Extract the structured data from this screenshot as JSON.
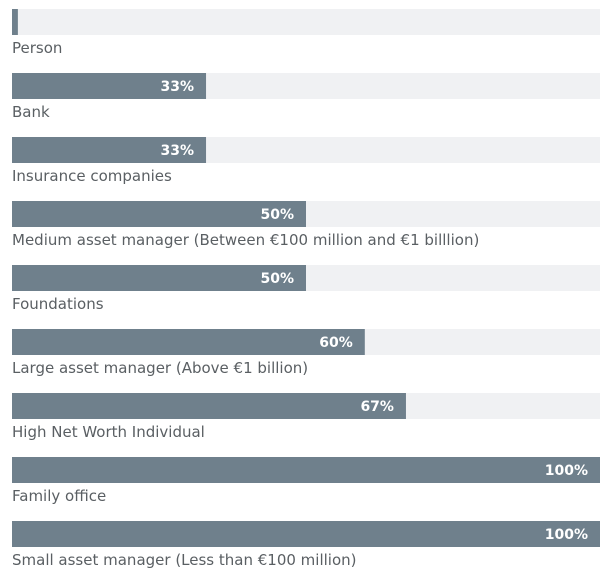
{
  "chart_data": {
    "type": "bar",
    "orientation": "horizontal",
    "categories": [
      "Person",
      "Bank",
      "Insurance companies",
      "Medium asset manager (Between €100 million and €1 billlion)",
      "Foundations",
      "Large asset manager (Above €1 billion)",
      "High Net Worth Individual",
      "Family office",
      "Small asset manager (Less than €100 million)"
    ],
    "values": [
      1,
      33,
      33,
      50,
      50,
      60,
      67,
      100,
      100
    ],
    "value_labels": [
      null,
      "33%",
      "33%",
      "50%",
      "50%",
      "60%",
      "67%",
      "100%",
      "100%"
    ],
    "color": "#6f808c",
    "track_color": "#f0f1f3",
    "xlim": [
      0,
      100
    ]
  }
}
